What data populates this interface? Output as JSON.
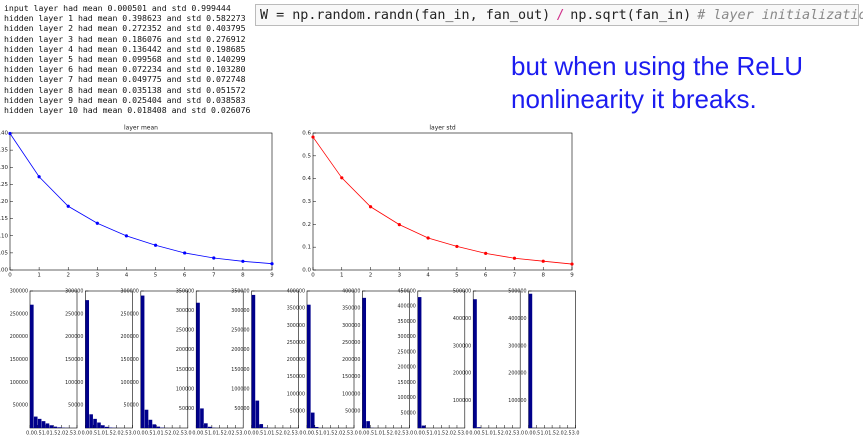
{
  "console_output": [
    "input layer had mean 0.000501 and std 0.999444",
    "hidden layer 1 had mean 0.398623 and std 0.582273",
    "hidden layer 2 had mean 0.272352 and std 0.403795",
    "hidden layer 3 had mean 0.186076 and std 0.276912",
    "hidden layer 4 had mean 0.136442 and std 0.198685",
    "hidden layer 5 had mean 0.099568 and std 0.140299",
    "hidden layer 6 had mean 0.072234 and std 0.103280",
    "hidden layer 7 had mean 0.049775 and std 0.072748",
    "hidden layer 8 had mean 0.035138 and std 0.051572",
    "hidden layer 9 had mean 0.025404 and std 0.038583",
    "hidden layer 10 had mean 0.018408 and std 0.026076"
  ],
  "code": {
    "statement": "W = np.random.randn(fan_in, fan_out)",
    "operator": "/",
    "divisor": "np.sqrt(fan_in)",
    "comment": "# layer initialization"
  },
  "caption": [
    "but when using the ReLU",
    "nonlinearity it breaks."
  ],
  "chart_data": [
    {
      "type": "line",
      "title": "layer mean",
      "x": [
        0,
        1,
        2,
        3,
        4,
        5,
        6,
        7,
        8,
        9
      ],
      "series": [
        {
          "color": "#0000ff",
          "values": [
            0.398623,
            0.272352,
            0.186076,
            0.136442,
            0.099568,
            0.072234,
            0.049775,
            0.035138,
            0.025404,
            0.018408
          ]
        }
      ],
      "xlim": [
        0,
        9
      ],
      "xticks": [
        0,
        1,
        2,
        3,
        4,
        5,
        6,
        7,
        8,
        9
      ],
      "ylim": [
        0,
        0.4
      ],
      "yticks": [
        {
          "value": 0,
          "label": "0.00"
        },
        {
          "value": 0.05,
          "label": "0.05"
        },
        {
          "value": 0.1,
          "label": "0.10"
        },
        {
          "value": 0.15,
          "label": "0.15"
        },
        {
          "value": 0.2,
          "label": "0.20"
        },
        {
          "value": 0.25,
          "label": "0.25"
        },
        {
          "value": 0.3,
          "label": "0.30"
        },
        {
          "value": 0.35,
          "label": "0.35"
        },
        {
          "value": 0.4,
          "label": "0.40"
        }
      ]
    },
    {
      "type": "line",
      "title": "layer std",
      "x": [
        0,
        1,
        2,
        3,
        4,
        5,
        6,
        7,
        8,
        9
      ],
      "series": [
        {
          "color": "#ff0000",
          "values": [
            0.582273,
            0.403795,
            0.276912,
            0.198685,
            0.140299,
            0.10328,
            0.072748,
            0.051572,
            0.038583,
            0.026076
          ]
        }
      ],
      "xlim": [
        0,
        9
      ],
      "xticks": [
        0,
        1,
        2,
        3,
        4,
        5,
        6,
        7,
        8,
        9
      ],
      "ylim": [
        0,
        0.6
      ],
      "yticks": [
        {
          "value": 0,
          "label": "0.0"
        },
        {
          "value": 0.1,
          "label": "0.1"
        },
        {
          "value": 0.2,
          "label": "0.2"
        },
        {
          "value": 0.3,
          "label": "0.3"
        },
        {
          "value": 0.4,
          "label": "0.4"
        },
        {
          "value": 0.5,
          "label": "0.5"
        },
        {
          "value": 0.6,
          "label": "0.6"
        }
      ]
    },
    {
      "type": "histogram",
      "color": "#00008b",
      "bins": [
        0,
        0.25,
        0.5,
        0.75,
        1,
        1.25,
        1.5,
        1.75,
        2,
        2.25,
        2.5,
        2.75,
        3
      ],
      "counts": [
        270000,
        25000,
        20000,
        15000,
        10000,
        6000,
        3000,
        1500,
        700,
        300,
        100,
        50
      ],
      "xlim": [
        0,
        3
      ],
      "xticks": [
        {
          "value": 0,
          "label": "0.0"
        },
        {
          "value": 0.5,
          "label": "0.5"
        },
        {
          "value": 1,
          "label": "1.0"
        },
        {
          "value": 1.5,
          "label": "1.5"
        },
        {
          "value": 2,
          "label": "2.0"
        },
        {
          "value": 2.5,
          "label": "2.5"
        },
        {
          "value": 3,
          "label": "3.0"
        }
      ],
      "ylim": [
        0,
        300000
      ],
      "yticks": [
        50000,
        100000,
        150000,
        200000,
        250000,
        300000
      ]
    },
    {
      "type": "histogram",
      "color": "#00008b",
      "bins": [
        0,
        0.25,
        0.5,
        0.75,
        1,
        1.25,
        1.5,
        1.75,
        2,
        2.25,
        2.5,
        2.75,
        3
      ],
      "counts": [
        280000,
        30000,
        20000,
        12000,
        6000,
        2500,
        1000,
        400,
        150,
        50,
        20,
        10
      ],
      "xlim": [
        0,
        3
      ],
      "xticks": [
        {
          "value": 0,
          "label": "0.0"
        },
        {
          "value": 0.5,
          "label": "0.5"
        },
        {
          "value": 1,
          "label": "1.0"
        },
        {
          "value": 1.5,
          "label": "1.5"
        },
        {
          "value": 2,
          "label": "2.0"
        },
        {
          "value": 2.5,
          "label": "2.5"
        },
        {
          "value": 3,
          "label": "3.0"
        }
      ],
      "ylim": [
        0,
        300000
      ],
      "yticks": [
        50000,
        100000,
        150000,
        200000,
        250000,
        300000
      ]
    },
    {
      "type": "histogram",
      "color": "#00008b",
      "bins": [
        0,
        0.25,
        0.5,
        0.75,
        1,
        1.25,
        1.5,
        1.75,
        2,
        2.25,
        2.5,
        2.75,
        3
      ],
      "counts": [
        290000,
        40000,
        18000,
        8000,
        3000,
        800,
        200,
        50,
        10,
        0,
        0,
        0
      ],
      "xlim": [
        0,
        3
      ],
      "xticks": [
        {
          "value": 0,
          "label": "0.0"
        },
        {
          "value": 0.5,
          "label": "0.5"
        },
        {
          "value": 1,
          "label": "1.0"
        },
        {
          "value": 1.5,
          "label": "1.5"
        },
        {
          "value": 2,
          "label": "2.0"
        },
        {
          "value": 2.5,
          "label": "2.5"
        },
        {
          "value": 3,
          "label": "3.0"
        }
      ],
      "ylim": [
        0,
        300000
      ],
      "yticks": [
        50000,
        100000,
        150000,
        200000,
        250000,
        300000
      ]
    },
    {
      "type": "histogram",
      "color": "#00008b",
      "bins": [
        0,
        0.25,
        0.5,
        0.75,
        1,
        1.25,
        1.5,
        1.75,
        2,
        2.25,
        2.5,
        2.75,
        3
      ],
      "counts": [
        320000,
        50000,
        12000,
        3000,
        600,
        100,
        20,
        0,
        0,
        0,
        0,
        0
      ],
      "xlim": [
        0,
        3
      ],
      "xticks": [
        {
          "value": 0,
          "label": "0.0"
        },
        {
          "value": 0.5,
          "label": "0.5"
        },
        {
          "value": 1,
          "label": "1.0"
        },
        {
          "value": 1.5,
          "label": "1.5"
        },
        {
          "value": 2,
          "label": "2.0"
        },
        {
          "value": 2.5,
          "label": "2.5"
        },
        {
          "value": 3,
          "label": "3.0"
        }
      ],
      "ylim": [
        0,
        350000
      ],
      "yticks": [
        50000,
        100000,
        150000,
        200000,
        250000,
        300000,
        350000
      ]
    },
    {
      "type": "histogram",
      "color": "#00008b",
      "bins": [
        0,
        0.25,
        0.5,
        0.75,
        1,
        1.25,
        1.5,
        1.75,
        2,
        2.25,
        2.5,
        2.75,
        3
      ],
      "counts": [
        340000,
        70000,
        10000,
        1500,
        200,
        20,
        0,
        0,
        0,
        0,
        0,
        0
      ],
      "xlim": [
        0,
        3
      ],
      "xticks": [
        {
          "value": 0,
          "label": "0.0"
        },
        {
          "value": 0.5,
          "label": "0.5"
        },
        {
          "value": 1,
          "label": "1.0"
        },
        {
          "value": 1.5,
          "label": "1.5"
        },
        {
          "value": 2,
          "label": "2.0"
        },
        {
          "value": 2.5,
          "label": "2.5"
        },
        {
          "value": 3,
          "label": "3.0"
        }
      ],
      "ylim": [
        0,
        350000
      ],
      "yticks": [
        50000,
        100000,
        150000,
        200000,
        250000,
        300000,
        350000
      ]
    },
    {
      "type": "histogram",
      "color": "#00008b",
      "bins": [
        0,
        0.25,
        0.5,
        0.75,
        1,
        1.25,
        1.5,
        1.75,
        2,
        2.25,
        2.5,
        2.75,
        3
      ],
      "counts": [
        360000,
        45000,
        3000,
        200,
        10,
        0,
        0,
        0,
        0,
        0,
        0,
        0
      ],
      "xlim": [
        0,
        3
      ],
      "xticks": [
        {
          "value": 0,
          "label": "0.0"
        },
        {
          "value": 0.5,
          "label": "0.5"
        },
        {
          "value": 1,
          "label": "1.0"
        },
        {
          "value": 1.5,
          "label": "1.5"
        },
        {
          "value": 2,
          "label": "2.0"
        },
        {
          "value": 2.5,
          "label": "2.5"
        },
        {
          "value": 3,
          "label": "3.0"
        }
      ],
      "ylim": [
        0,
        400000
      ],
      "yticks": [
        50000,
        100000,
        150000,
        200000,
        250000,
        300000,
        350000,
        400000
      ]
    },
    {
      "type": "histogram",
      "color": "#00008b",
      "bins": [
        0,
        0.25,
        0.5,
        0.75,
        1,
        1.25,
        1.5,
        1.75,
        2,
        2.25,
        2.5,
        2.75,
        3
      ],
      "counts": [
        380000,
        20000,
        500,
        0,
        0,
        0,
        0,
        0,
        0,
        0,
        0,
        0
      ],
      "xlim": [
        0,
        3
      ],
      "xticks": [
        {
          "value": 0,
          "label": "0.0"
        },
        {
          "value": 0.5,
          "label": "0.5"
        },
        {
          "value": 1,
          "label": "1.0"
        },
        {
          "value": 1.5,
          "label": "1.5"
        },
        {
          "value": 2,
          "label": "2.0"
        },
        {
          "value": 2.5,
          "label": "2.5"
        },
        {
          "value": 3,
          "label": "3.0"
        }
      ],
      "ylim": [
        0,
        400000
      ],
      "yticks": [
        50000,
        100000,
        150000,
        200000,
        250000,
        300000,
        350000,
        400000
      ]
    },
    {
      "type": "histogram",
      "color": "#00008b",
      "bins": [
        0,
        0.25,
        0.5,
        0.75,
        1,
        1.25,
        1.5,
        1.75,
        2,
        2.25,
        2.5,
        2.75,
        3
      ],
      "counts": [
        430000,
        8000,
        100,
        0,
        0,
        0,
        0,
        0,
        0,
        0,
        0,
        0
      ],
      "xlim": [
        0,
        3
      ],
      "xticks": [
        {
          "value": 0,
          "label": "0.0"
        },
        {
          "value": 0.5,
          "label": "0.5"
        },
        {
          "value": 1,
          "label": "1.0"
        },
        {
          "value": 1.5,
          "label": "1.5"
        },
        {
          "value": 2,
          "label": "2.0"
        },
        {
          "value": 2.5,
          "label": "2.5"
        },
        {
          "value": 3,
          "label": "3.0"
        }
      ],
      "ylim": [
        0,
        450000
      ],
      "yticks": [
        50000,
        100000,
        150000,
        200000,
        250000,
        300000,
        350000,
        400000,
        450000
      ]
    },
    {
      "type": "histogram",
      "color": "#00008b",
      "bins": [
        0,
        0.25,
        0.5,
        0.75,
        1,
        1.25,
        1.5,
        1.75,
        2,
        2.25,
        2.5,
        2.75,
        3
      ],
      "counts": [
        470000,
        3000,
        0,
        0,
        0,
        0,
        0,
        0,
        0,
        0,
        0,
        0
      ],
      "xlim": [
        0,
        3
      ],
      "xticks": [
        {
          "value": 0,
          "label": "0.0"
        },
        {
          "value": 0.5,
          "label": "0.5"
        },
        {
          "value": 1,
          "label": "1.0"
        },
        {
          "value": 1.5,
          "label": "1.5"
        },
        {
          "value": 2,
          "label": "2.0"
        },
        {
          "value": 2.5,
          "label": "2.5"
        },
        {
          "value": 3,
          "label": "3.0"
        }
      ],
      "ylim": [
        0,
        500000
      ],
      "yticks": [
        100000,
        200000,
        300000,
        400000,
        500000
      ]
    },
    {
      "type": "histogram",
      "color": "#00008b",
      "bins": [
        0,
        0.25,
        0.5,
        0.75,
        1,
        1.25,
        1.5,
        1.75,
        2,
        2.25,
        2.5,
        2.75,
        3
      ],
      "counts": [
        490000,
        500,
        0,
        0,
        0,
        0,
        0,
        0,
        0,
        0,
        0,
        0
      ],
      "xlim": [
        0,
        3
      ],
      "xticks": [
        {
          "value": 0,
          "label": "0.0"
        },
        {
          "value": 0.5,
          "label": "0.5"
        },
        {
          "value": 1,
          "label": "1.0"
        },
        {
          "value": 1.5,
          "label": "1.5"
        },
        {
          "value": 2,
          "label": "2.0"
        },
        {
          "value": 2.5,
          "label": "2.5"
        },
        {
          "value": 3,
          "label": "3.0"
        }
      ],
      "ylim": [
        0,
        500000
      ],
      "yticks": [
        100000,
        200000,
        300000,
        400000,
        500000
      ]
    }
  ]
}
